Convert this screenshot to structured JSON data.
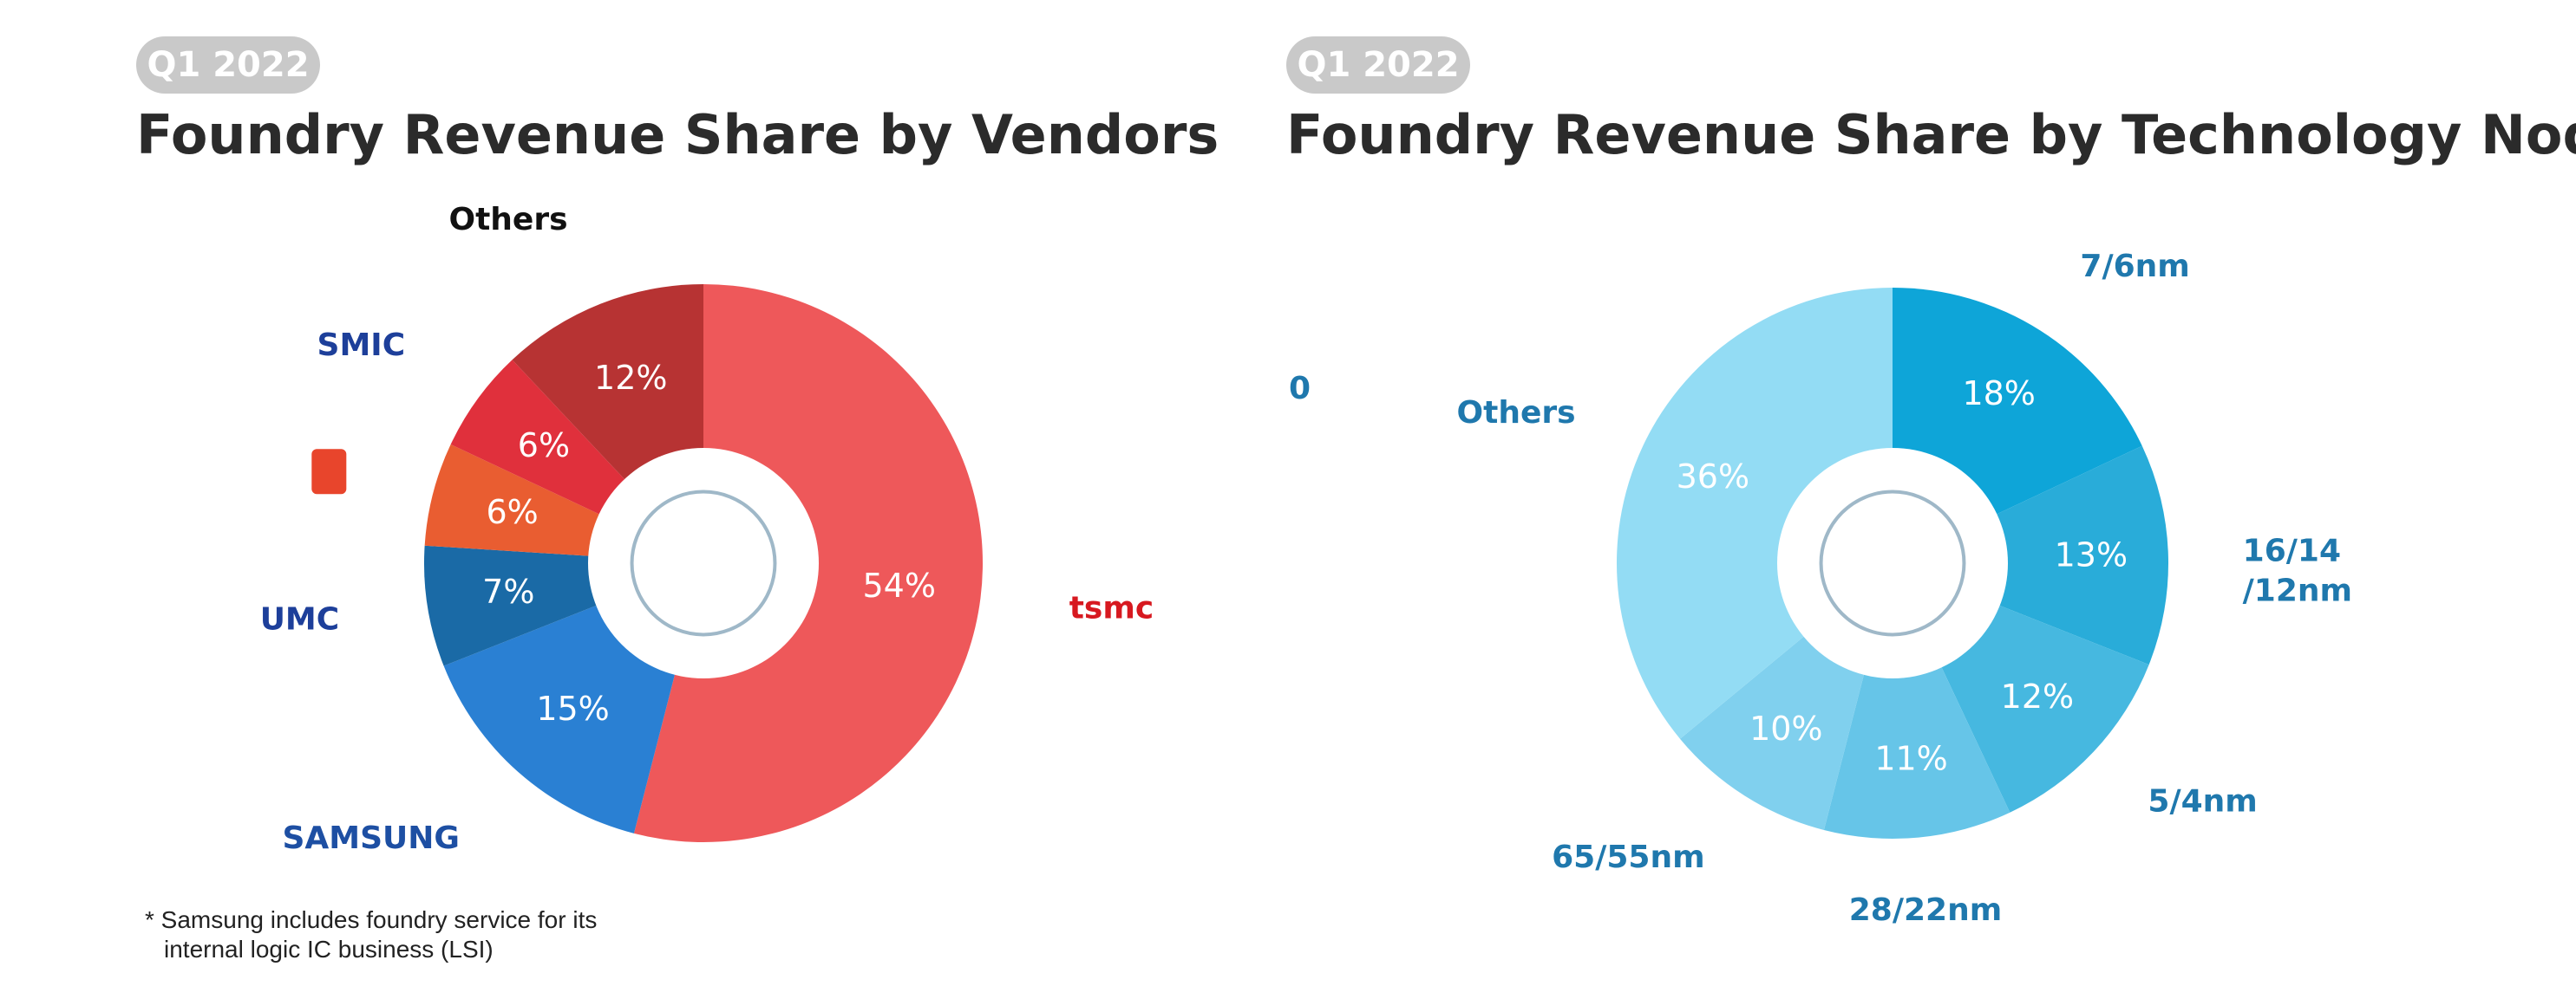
{
  "chart_data": [
    {
      "type": "donut",
      "badge": "Q1 2022",
      "title": "Foundry Revenue Share by Vendors",
      "categories": [
        "tsmc",
        "SAMSUNG",
        "UMC",
        null,
        "SMIC",
        "Others"
      ],
      "values": [
        54,
        15,
        7,
        6,
        6,
        12
      ],
      "value_labels": [
        "54%",
        "15%",
        "7%",
        "6%",
        "6%",
        "12%"
      ],
      "colors": [
        "#ee585a",
        "#2a80d3",
        "#1a6aa6",
        "#e95d31",
        "#e0303c",
        "#b73333"
      ],
      "label_colors": [
        "#d71920",
        "#1d4fa3",
        "#1d3f9a",
        "#e8452c",
        "#1d3f9a",
        "#111111"
      ],
      "note": "* Samsung includes foundry service for its\ninternal logic IC business (LSI)"
    },
    {
      "type": "donut",
      "badge": "Q1 2022",
      "title": "Foundry Revenue Share by Technology Nodes",
      "annotation": "0",
      "categories": [
        "7/6nm",
        "16/14\n/12nm",
        "5/4nm",
        "28/22nm",
        "65/55nm",
        "Others"
      ],
      "values": [
        18,
        13,
        12,
        11,
        10,
        36
      ],
      "value_labels": [
        "18%",
        "13%",
        "12%",
        "11%",
        "10%",
        "36%"
      ],
      "colors": [
        "#0ea5d8",
        "#29acd9",
        "#46b8e0",
        "#66c5e8",
        "#80d0ee",
        "#93dcf4"
      ],
      "label_colors": [
        "#1f78ad",
        "#1f78ad",
        "#1f78ad",
        "#1f78ad",
        "#1f78ad",
        "#1f78ad"
      ]
    }
  ]
}
